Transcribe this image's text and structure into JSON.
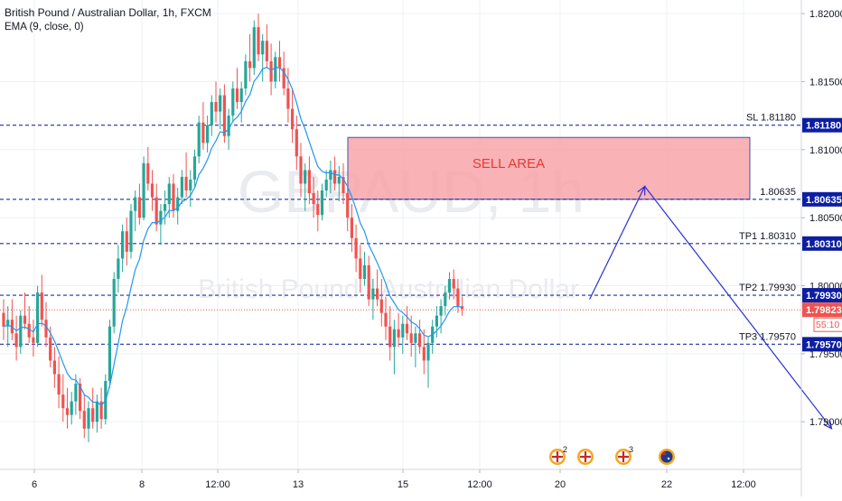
{
  "header": {
    "title": "British Pound / Australian Dollar, 1h, FXCM",
    "indicator": "EMA (9, close, 0)"
  },
  "watermark": {
    "symbol": "GBPAUD, 1h",
    "name": "British Pound / Australian Dollar"
  },
  "colors": {
    "up": "#26a69a",
    "down": "#ef5350",
    "ema": "#2196f3",
    "level_line": "#1f2fa8",
    "level_badge": "#0d1fa0",
    "current_badge": "#ef5350",
    "arrow": "#2b2fd6",
    "sell_fill": "#f8a5a8",
    "sell_border": "#3f51b5",
    "sell_text": "#e53935",
    "grid": "#eef0f3"
  },
  "chart_data": {
    "type": "candlestick",
    "symbol": "GBPAUD",
    "timeframe": "1h",
    "ylim": [
      1.7865,
      1.821
    ],
    "x_ticks": [
      "6",
      "8",
      "12:00",
      "13",
      "15",
      "12:00",
      "20",
      "22",
      "12:00"
    ],
    "y_ticks": [
      "1.79000",
      "1.79500",
      "1.80000",
      "1.80500",
      "1.81000",
      "1.81500",
      "1.82000"
    ],
    "levels": [
      {
        "name": "SL",
        "label": "SL 1.81180",
        "value": 1.8118,
        "badge": "1.81180"
      },
      {
        "name": "entry",
        "label": "1.80635",
        "value": 1.80635,
        "badge": "1.80635"
      },
      {
        "name": "TP1",
        "label": "TP1 1.80310",
        "value": 1.8031,
        "badge": "1.80310"
      },
      {
        "name": "TP2",
        "label": "TP2 1.79930",
        "value": 1.7993,
        "badge": "1.79930"
      },
      {
        "name": "TP3",
        "label": "TP3 1.79570",
        "value": 1.7957,
        "badge": "1.79570"
      }
    ],
    "current_price": {
      "value": 1.79823,
      "badge": "1.79823",
      "countdown": "55:10"
    },
    "sell_area": {
      "label": "SELL AREA",
      "top": 1.8109,
      "bottom": 1.80635
    },
    "projection_path": [
      {
        "bar": 138,
        "price": 1.799
      },
      {
        "bar": 151,
        "price": 1.8073
      },
      {
        "bar": 195,
        "price": 1.7895
      }
    ],
    "candles": [
      [
        1.798,
        1.799,
        1.796,
        1.797
      ],
      [
        1.797,
        1.7985,
        1.7955,
        1.7975
      ],
      [
        1.7975,
        1.799,
        1.796,
        1.7965
      ],
      [
        1.7965,
        1.7978,
        1.7945,
        1.7955
      ],
      [
        1.7955,
        1.7982,
        1.795,
        1.7978
      ],
      [
        1.7978,
        1.7995,
        1.7968,
        1.7972
      ],
      [
        1.7972,
        1.7985,
        1.7958,
        1.7962
      ],
      [
        1.7962,
        1.7975,
        1.7948,
        1.7958
      ],
      [
        1.7958,
        1.8,
        1.7955,
        1.7995
      ],
      [
        1.7995,
        1.8008,
        1.797,
        1.7975
      ],
      [
        1.7975,
        1.7988,
        1.7955,
        1.7962
      ],
      [
        1.7962,
        1.797,
        1.794,
        1.7945
      ],
      [
        1.7945,
        1.7955,
        1.7925,
        1.7935
      ],
      [
        1.7935,
        1.7948,
        1.791,
        1.792
      ],
      [
        1.792,
        1.7935,
        1.79,
        1.791
      ],
      [
        1.791,
        1.7925,
        1.7895,
        1.7905
      ],
      [
        1.7905,
        1.7922,
        1.7898,
        1.7915
      ],
      [
        1.7915,
        1.7935,
        1.7905,
        1.7928
      ],
      [
        1.7928,
        1.7932,
        1.7902,
        1.7908
      ],
      [
        1.7908,
        1.792,
        1.7888,
        1.7895
      ],
      [
        1.7895,
        1.7915,
        1.7885,
        1.791
      ],
      [
        1.791,
        1.7925,
        1.7895,
        1.79
      ],
      [
        1.79,
        1.792,
        1.7892,
        1.7915
      ],
      [
        1.7915,
        1.7925,
        1.7895,
        1.7902
      ],
      [
        1.7902,
        1.7935,
        1.7898,
        1.793
      ],
      [
        1.793,
        1.7975,
        1.7925,
        1.797
      ],
      [
        1.797,
        1.801,
        1.7965,
        1.8005
      ],
      [
        1.8005,
        1.803,
        1.7995,
        1.802
      ],
      [
        1.802,
        1.8045,
        1.801,
        1.804
      ],
      [
        1.804,
        1.805,
        1.8015,
        1.8025
      ],
      [
        1.8025,
        1.806,
        1.802,
        1.8055
      ],
      [
        1.8055,
        1.807,
        1.804,
        1.8065
      ],
      [
        1.8065,
        1.8075,
        1.8045,
        1.805
      ],
      [
        1.805,
        1.8095,
        1.8048,
        1.809
      ],
      [
        1.809,
        1.8102,
        1.807,
        1.8075
      ],
      [
        1.8075,
        1.8085,
        1.8055,
        1.8065
      ],
      [
        1.8065,
        1.8075,
        1.804,
        1.8045
      ],
      [
        1.8045,
        1.806,
        1.803,
        1.8055
      ],
      [
        1.8055,
        1.807,
        1.8045,
        1.806
      ],
      [
        1.806,
        1.808,
        1.805,
        1.8075
      ],
      [
        1.8075,
        1.8082,
        1.805,
        1.8055
      ],
      [
        1.8055,
        1.8072,
        1.8045,
        1.8065
      ],
      [
        1.8065,
        1.8085,
        1.806,
        1.808
      ],
      [
        1.808,
        1.8098,
        1.8065,
        1.807
      ],
      [
        1.807,
        1.8085,
        1.8058,
        1.8078
      ],
      [
        1.8078,
        1.81,
        1.8072,
        1.8095
      ],
      [
        1.8095,
        1.8125,
        1.809,
        1.812
      ],
      [
        1.812,
        1.8135,
        1.81,
        1.8105
      ],
      [
        1.8105,
        1.8125,
        1.8098,
        1.8118
      ],
      [
        1.8118,
        1.814,
        1.811,
        1.8135
      ],
      [
        1.8135,
        1.815,
        1.812,
        1.8128
      ],
      [
        1.8128,
        1.8145,
        1.8115,
        1.814
      ],
      [
        1.814,
        1.8148,
        1.8105,
        1.811
      ],
      [
        1.811,
        1.813,
        1.81,
        1.8125
      ],
      [
        1.8125,
        1.815,
        1.812,
        1.8145
      ],
      [
        1.8145,
        1.816,
        1.813,
        1.8135
      ],
      [
        1.8135,
        1.815,
        1.812,
        1.8145
      ],
      [
        1.8145,
        1.817,
        1.814,
        1.8165
      ],
      [
        1.8165,
        1.8185,
        1.815,
        1.816
      ],
      [
        1.816,
        1.8195,
        1.8155,
        1.819
      ],
      [
        1.819,
        1.82,
        1.8165,
        1.817
      ],
      [
        1.817,
        1.8185,
        1.815,
        1.818
      ],
      [
        1.818,
        1.8192,
        1.816,
        1.8165
      ],
      [
        1.8165,
        1.8178,
        1.814,
        1.815
      ],
      [
        1.815,
        1.8172,
        1.8145,
        1.8168
      ],
      [
        1.8168,
        1.818,
        1.815,
        1.816
      ],
      [
        1.816,
        1.8172,
        1.814,
        1.8145
      ],
      [
        1.8145,
        1.816,
        1.812,
        1.813
      ],
      [
        1.813,
        1.8145,
        1.8105,
        1.8115
      ],
      [
        1.8115,
        1.8125,
        1.8085,
        1.8095
      ],
      [
        1.8095,
        1.8105,
        1.8065,
        1.8075
      ],
      [
        1.8075,
        1.809,
        1.8055,
        1.8085
      ],
      [
        1.8085,
        1.8095,
        1.806,
        1.8068
      ],
      [
        1.8068,
        1.808,
        1.805,
        1.806
      ],
      [
        1.806,
        1.807,
        1.804,
        1.8052
      ],
      [
        1.8052,
        1.8075,
        1.8048,
        1.807
      ],
      [
        1.807,
        1.8085,
        1.8065,
        1.8078
      ],
      [
        1.8078,
        1.8092,
        1.8068,
        1.8085
      ],
      [
        1.8085,
        1.8095,
        1.807,
        1.8075
      ],
      [
        1.8075,
        1.8088,
        1.8062,
        1.808
      ],
      [
        1.808,
        1.809,
        1.806,
        1.8068
      ],
      [
        1.8068,
        1.8078,
        1.804,
        1.805
      ],
      [
        1.805,
        1.806,
        1.8025,
        1.8035
      ],
      [
        1.8035,
        1.8045,
        1.801,
        1.802
      ],
      [
        1.802,
        1.803,
        1.7995,
        1.8005
      ],
      [
        1.8005,
        1.8025,
        1.8,
        1.8015
      ],
      [
        1.8015,
        1.8022,
        1.7985,
        1.799
      ],
      [
        1.799,
        1.8005,
        1.7975,
        1.7998
      ],
      [
        1.7998,
        1.8012,
        1.7985,
        1.799
      ],
      [
        1.799,
        1.8005,
        1.797,
        1.798
      ],
      [
        1.798,
        1.7992,
        1.796,
        1.797
      ],
      [
        1.797,
        1.7985,
        1.7945,
        1.7955
      ],
      [
        1.7955,
        1.7975,
        1.7935,
        1.7968
      ],
      [
        1.7968,
        1.798,
        1.7955,
        1.7962
      ],
      [
        1.7962,
        1.7978,
        1.795,
        1.7972
      ],
      [
        1.7972,
        1.7985,
        1.796,
        1.7965
      ],
      [
        1.7965,
        1.7978,
        1.7948,
        1.7958
      ],
      [
        1.7958,
        1.797,
        1.794,
        1.7965
      ],
      [
        1.7965,
        1.7975,
        1.795,
        1.7955
      ],
      [
        1.7955,
        1.7968,
        1.7935,
        1.7945
      ],
      [
        1.7945,
        1.7962,
        1.7925,
        1.7958
      ],
      [
        1.7958,
        1.7975,
        1.795,
        1.797
      ],
      [
        1.797,
        1.7985,
        1.7962,
        1.7978
      ],
      [
        1.7978,
        1.799,
        1.7965,
        1.7985
      ],
      [
        1.7985,
        1.8,
        1.7978,
        1.7995
      ],
      [
        1.7995,
        1.801,
        1.799,
        1.8005
      ],
      [
        1.8005,
        1.8012,
        1.799,
        1.7998
      ],
      [
        1.7998,
        1.8005,
        1.798,
        1.7985
      ],
      [
        1.7985,
        1.7992,
        1.7978,
        1.7983
      ]
    ]
  },
  "calendar_events": [
    {
      "icon": "flag-uk-icon",
      "count": "2"
    },
    {
      "icon": "flag-uk-icon",
      "count": ""
    },
    {
      "icon": "flag-uk-icon",
      "count": "3"
    },
    {
      "icon": "flag-au-icon",
      "count": ""
    }
  ]
}
